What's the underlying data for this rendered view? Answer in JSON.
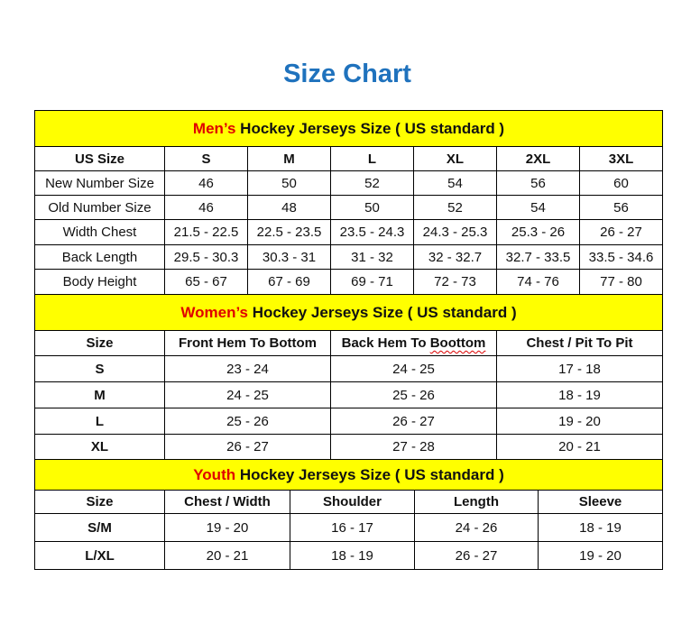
{
  "title": "Size Chart",
  "men": {
    "header_highlight": "Men’s",
    "header_rest": " Hockey Jerseys Size ( US standard )",
    "columns": [
      "US Size",
      "S",
      "M",
      "L",
      "XL",
      "2XL",
      "3XL"
    ],
    "rows": [
      [
        "New Number Size",
        "46",
        "50",
        "52",
        "54",
        "56",
        "60"
      ],
      [
        "Old Number Size",
        "46",
        "48",
        "50",
        "52",
        "54",
        "56"
      ],
      [
        "Width Chest",
        "21.5 - 22.5",
        "22.5 - 23.5",
        "23.5 - 24.3",
        "24.3 - 25.3",
        "25.3 - 26",
        "26 - 27"
      ],
      [
        "Back Length",
        "29.5 - 30.3",
        "30.3 - 31",
        "31 - 32",
        "32 - 32.7",
        "32.7 - 33.5",
        "33.5 - 34.6"
      ],
      [
        "Body Height",
        "65 - 67",
        "67 - 69",
        "69 - 71",
        "72 - 73",
        "74 - 76",
        "77 - 80"
      ]
    ]
  },
  "women": {
    "header_highlight": "Women’s",
    "header_rest": " Hockey Jerseys Size ( US standard )",
    "columns": [
      "Size",
      "Front Hem To Bottom",
      "Back Hem To Boottom",
      "Chest / Pit To Pit"
    ],
    "rows": [
      [
        "S",
        "23 - 24",
        "24 - 25",
        "17 - 18"
      ],
      [
        "M",
        "24 - 25",
        "25 - 26",
        "18 - 19"
      ],
      [
        "L",
        "25 - 26",
        "26 - 27",
        "19 - 20"
      ],
      [
        "XL",
        "26 - 27",
        "27 - 28",
        "20 - 21"
      ]
    ]
  },
  "youth": {
    "header_highlight": "Youth",
    "header_rest": " Hockey Jerseys Size ( US standard )",
    "columns": [
      "Size",
      "Chest / Width",
      "Shoulder",
      "Length",
      "Sleeve"
    ],
    "rows": [
      [
        "S/M",
        "19 - 20",
        "16 - 17",
        "24 - 26",
        "18 - 19"
      ],
      [
        "L/XL",
        "20 - 21",
        "18 - 19",
        "26 - 27",
        "19 - 20"
      ]
    ]
  },
  "colors": {
    "title": "#1f72bd",
    "header_bg": "#ffff00",
    "highlight": "#e00000"
  }
}
